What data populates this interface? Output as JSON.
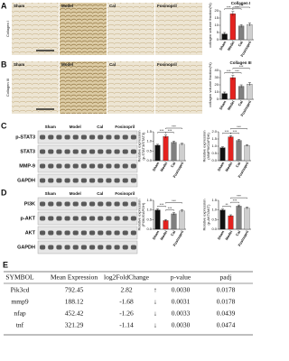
{
  "histology": [
    {
      "panel": "A",
      "stain": "Collagen I",
      "groups": [
        "Sham",
        "Model",
        "Cal",
        "Fosinopril"
      ]
    },
    {
      "panel": "B",
      "stain": "Collagen III",
      "groups": [
        "Sham",
        "Model",
        "Cal",
        "Fosinopril"
      ]
    }
  ],
  "blots": [
    {
      "panel": "C",
      "groups": [
        "Sham",
        "Model",
        "Cal",
        "Fosinopril"
      ],
      "proteins": [
        "p-STAT3",
        "STAT3",
        "MMP-9",
        "GAPDH"
      ]
    },
    {
      "panel": "D",
      "groups": [
        "Sham",
        "Model",
        "Cal",
        "Fosinopril"
      ],
      "proteins": [
        "PI3K",
        "p-AKT",
        "AKT",
        "GAPDH"
      ]
    }
  ],
  "chart_data": [
    {
      "type": "bar",
      "title": "Collagen I",
      "ylabel": [
        "collagen volume fraction(%)"
      ],
      "categories": [
        "Sham",
        "Model",
        "Cal",
        "Fosinopril"
      ],
      "values": [
        4,
        18,
        9.5,
        10.5
      ],
      "errors": [
        1,
        1.5,
        1,
        1
      ],
      "colors": [
        "#111111",
        "#e4221f",
        "#808080",
        "#cfcfcf"
      ],
      "ylim": [
        0,
        20
      ],
      "yticks": [
        0,
        5,
        10,
        15,
        20
      ],
      "annotations": [
        "***",
        "***",
        "***"
      ]
    },
    {
      "type": "bar",
      "title": "Collagen III",
      "ylabel": [
        "collagen volume fraction(%)"
      ],
      "categories": [
        "Sham",
        "Model",
        "Cal",
        "Fosinopril"
      ],
      "values": [
        8,
        30,
        18,
        21
      ],
      "errors": [
        2,
        3,
        2,
        2
      ],
      "colors": [
        "#111111",
        "#e4221f",
        "#808080",
        "#cfcfcf"
      ],
      "ylim": [
        0,
        40
      ],
      "yticks": [
        0,
        10,
        20,
        30,
        40
      ],
      "annotations": [
        "***",
        "***",
        "***"
      ]
    },
    {
      "type": "bar",
      "ylabel": [
        "Relative expression",
        "(p-STAT3/STAT3)"
      ],
      "categories": [
        "Sham",
        "Model",
        "Cal",
        "Fosinopril"
      ],
      "values": [
        0.8,
        1.25,
        0.95,
        0.85
      ],
      "errors": [
        0.05,
        0.08,
        0.06,
        0.05
      ],
      "colors": [
        "#111111",
        "#e4221f",
        "#808080",
        "#cfcfcf"
      ],
      "ylim": [
        0,
        1.5
      ],
      "yticks": [
        {
          "value": 0,
          "label": "0.0"
        },
        {
          "value": 0.5,
          "label": "0.5"
        },
        {
          "value": 1,
          "label": "1.0"
        },
        {
          "value": 1.5,
          "label": "1.5"
        }
      ],
      "annotations": [
        "***",
        "***",
        "***"
      ]
    },
    {
      "type": "bar",
      "ylabel": [
        "Relative expression",
        "(MMP9/GAPDH)"
      ],
      "categories": [
        "Sham",
        "Model",
        "Cal",
        "Fosinopril"
      ],
      "values": [
        0.9,
        1.65,
        1.4,
        1.05
      ],
      "errors": [
        0.06,
        0.08,
        0.07,
        0.06
      ],
      "colors": [
        "#111111",
        "#e4221f",
        "#808080",
        "#cfcfcf"
      ],
      "ylim": [
        0,
        2
      ],
      "yticks": [
        {
          "value": 0,
          "label": "0.0"
        },
        {
          "value": 0.5,
          "label": "0.5"
        },
        {
          "value": 1,
          "label": "1.0"
        },
        {
          "value": 1.5,
          "label": "1.5"
        },
        {
          "value": 2,
          "label": "2.0"
        }
      ],
      "annotations": [
        "***",
        "***",
        "***"
      ]
    },
    {
      "type": "bar",
      "ylabel": [
        "Relative expression",
        "(PI3K/GAPDH)"
      ],
      "categories": [
        "Sham",
        "Model",
        "Cal",
        "Fosinopril"
      ],
      "values": [
        1.0,
        0.45,
        0.8,
        0.95
      ],
      "errors": [
        0.06,
        0.05,
        0.06,
        0.06
      ],
      "colors": [
        "#111111",
        "#e4221f",
        "#808080",
        "#cfcfcf"
      ],
      "ylim": [
        0,
        1.5
      ],
      "yticks": [
        {
          "value": 0,
          "label": "0.0"
        },
        {
          "value": 0.5,
          "label": "0.5"
        },
        {
          "value": 1,
          "label": "1.0"
        },
        {
          "value": 1.5,
          "label": "1.5"
        }
      ],
      "annotations": [
        "***",
        "***",
        "***"
      ]
    },
    {
      "type": "bar",
      "ylabel": [
        "Relative expression",
        "(p-AKT/AKT)"
      ],
      "categories": [
        "Sham",
        "Model",
        "Cal",
        "Fosinopril"
      ],
      "values": [
        1.0,
        0.7,
        1.2,
        1.1
      ],
      "errors": [
        0.05,
        0.05,
        0.06,
        0.05
      ],
      "colors": [
        "#111111",
        "#e4221f",
        "#808080",
        "#cfcfcf"
      ],
      "ylim": [
        0,
        1.5
      ],
      "yticks": [
        {
          "value": 0,
          "label": "0.0"
        },
        {
          "value": 0.5,
          "label": "0.5"
        },
        {
          "value": 1,
          "label": "1.0"
        },
        {
          "value": 1.5,
          "label": "1.5"
        }
      ],
      "annotations": [
        "**",
        "***",
        "***"
      ]
    }
  ],
  "table": {
    "panel": "E",
    "header": [
      "SYMBOL",
      "Mean Expression",
      "log2FoldChange",
      "p-value",
      "padj"
    ],
    "rows": [
      [
        "Pik3cd",
        "792.45",
        "2.82",
        "↑",
        "0.0030",
        "0.0178"
      ],
      [
        "mmp9",
        "188.12",
        "-1.68",
        "↓",
        "0.0031",
        "0.0178"
      ],
      [
        "nfap",
        "452.42",
        "-1.26",
        "↓",
        "0.0033",
        "0.0439"
      ],
      [
        "tnf",
        "321.29",
        "-1.14",
        "↓",
        "0.0030",
        "0.0474"
      ]
    ]
  }
}
